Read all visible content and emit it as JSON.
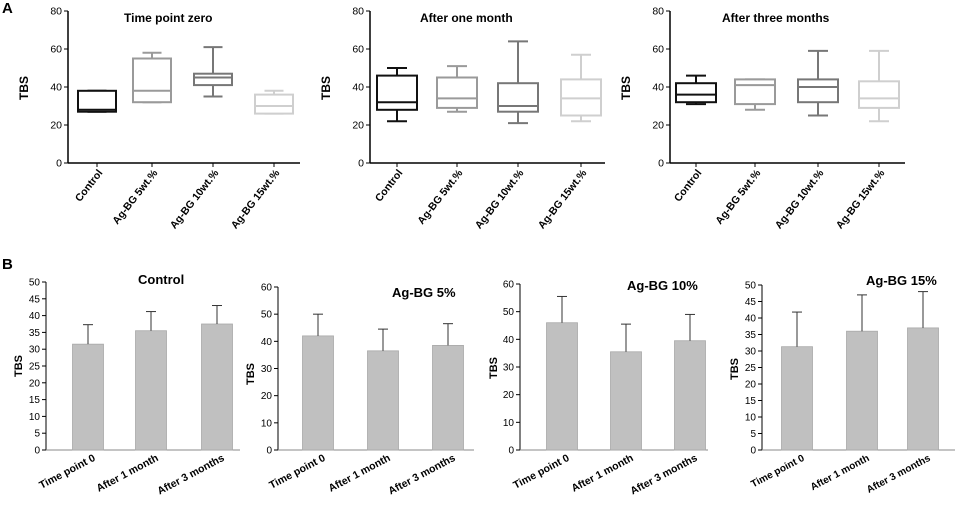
{
  "figure": {
    "panel_a_label": "A",
    "panel_b_label": "B"
  },
  "chart_data": [
    {
      "type": "box",
      "panel": "A",
      "title": "Time point zero",
      "ylabel": "TBS",
      "ylim": [
        0,
        80
      ],
      "yticks": [
        0,
        20,
        40,
        60,
        80
      ],
      "categories": [
        "Control",
        "Ag-BG 5wt.%",
        "Ag-BG 10wt.%",
        "Ag-BG 15wt.%"
      ],
      "box_colors": [
        "#111111",
        "#9a9a9a",
        "#777777",
        "#cfcfcf"
      ],
      "boxes": [
        {
          "min": 27,
          "q1": 27,
          "median": 28,
          "q3": 38,
          "max": 38
        },
        {
          "min": 32,
          "q1": 32,
          "median": 38,
          "q3": 55,
          "max": 58
        },
        {
          "min": 35,
          "q1": 41,
          "median": 45,
          "q3": 47,
          "max": 61
        },
        {
          "min": 26,
          "q1": 26,
          "median": 30,
          "q3": 36,
          "max": 38
        }
      ]
    },
    {
      "type": "box",
      "panel": "A",
      "title": "After one month",
      "ylabel": "TBS",
      "ylim": [
        0,
        80
      ],
      "yticks": [
        0,
        20,
        40,
        60,
        80
      ],
      "categories": [
        "Control",
        "Ag-BG 5wt.%",
        "Ag-BG 10wt.%",
        "Ag-BG 15wt.%"
      ],
      "box_colors": [
        "#111111",
        "#9a9a9a",
        "#777777",
        "#cfcfcf"
      ],
      "boxes": [
        {
          "min": 22,
          "q1": 28,
          "median": 32,
          "q3": 46,
          "max": 50
        },
        {
          "min": 27,
          "q1": 29,
          "median": 34,
          "q3": 45,
          "max": 51
        },
        {
          "min": 21,
          "q1": 27,
          "median": 30,
          "q3": 42,
          "max": 64
        },
        {
          "min": 22,
          "q1": 25,
          "median": 34,
          "q3": 44,
          "max": 57
        }
      ]
    },
    {
      "type": "box",
      "panel": "A",
      "title": "After three months",
      "ylabel": "TBS",
      "ylim": [
        0,
        80
      ],
      "yticks": [
        0,
        20,
        40,
        60,
        80
      ],
      "categories": [
        "Control",
        "Ag-BG 5wt.%",
        "Ag-BG 10wt.%",
        "Ag-BG 15wt.%"
      ],
      "box_colors": [
        "#111111",
        "#9a9a9a",
        "#777777",
        "#cfcfcf"
      ],
      "boxes": [
        {
          "min": 31,
          "q1": 32,
          "median": 36,
          "q3": 42,
          "max": 46
        },
        {
          "min": 28,
          "q1": 31,
          "median": 41,
          "q3": 44,
          "max": 44
        },
        {
          "min": 25,
          "q1": 32,
          "median": 40,
          "q3": 44,
          "max": 59
        },
        {
          "min": 22,
          "q1": 29,
          "median": 34,
          "q3": 43,
          "max": 59
        }
      ]
    },
    {
      "type": "bar",
      "panel": "B",
      "title": "Control",
      "ylabel": "TBS",
      "ylim": [
        0,
        50
      ],
      "yticks": [
        0,
        5,
        10,
        15,
        20,
        25,
        30,
        35,
        40,
        45,
        50
      ],
      "categories": [
        "Time point 0",
        "After 1 month",
        "After 3 months"
      ],
      "values": [
        31.5,
        35.5,
        37.5
      ],
      "errors": [
        5.8,
        5.7,
        5.5
      ],
      "bar_color": "#c0c0c0"
    },
    {
      "type": "bar",
      "panel": "B",
      "title": "Ag-BG 5%",
      "ylabel": "TBS",
      "ylim": [
        0,
        60
      ],
      "yticks": [
        0,
        10,
        20,
        30,
        40,
        50,
        60
      ],
      "categories": [
        "Time point 0",
        "After 1 month",
        "After 3 months"
      ],
      "values": [
        42,
        36.5,
        38.5
      ],
      "errors": [
        8,
        8,
        8
      ],
      "bar_color": "#c0c0c0"
    },
    {
      "type": "bar",
      "panel": "B",
      "title": "Ag-BG 10%",
      "ylabel": "TBS",
      "ylim": [
        0,
        60
      ],
      "yticks": [
        0,
        10,
        20,
        30,
        40,
        50,
        60
      ],
      "categories": [
        "Time point 0",
        "After 1 month",
        "After 3 months"
      ],
      "values": [
        46,
        35.5,
        39.5
      ],
      "errors": [
        9.5,
        10,
        9.5
      ],
      "bar_color": "#c0c0c0"
    },
    {
      "type": "bar",
      "panel": "B",
      "title": "Ag-BG 15%",
      "ylabel": "TBS",
      "ylim": [
        0,
        50
      ],
      "yticks": [
        0,
        5,
        10,
        15,
        20,
        25,
        30,
        35,
        40,
        45,
        50
      ],
      "categories": [
        "Time point 0",
        "After 1 month",
        "After 3 months"
      ],
      "values": [
        31.3,
        36,
        37
      ],
      "errors": [
        10.5,
        11,
        11
      ],
      "bar_color": "#c0c0c0"
    }
  ]
}
